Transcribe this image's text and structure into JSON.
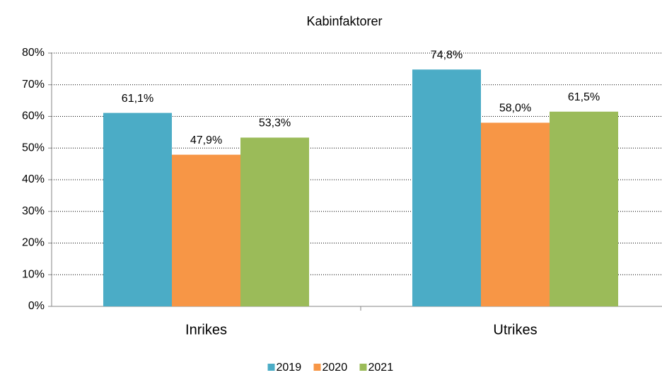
{
  "chart_data": {
    "type": "bar",
    "title": "Kabinfaktorer",
    "categories": [
      "Inrikes",
      "Utrikes"
    ],
    "series": [
      {
        "name": "2019",
        "color": "#4bacc6",
        "values": [
          61.1,
          74.8
        ],
        "value_labels": [
          "61,1%",
          "74,8%"
        ]
      },
      {
        "name": "2020",
        "color": "#f79646",
        "values": [
          47.9,
          58.0
        ],
        "value_labels": [
          "47,9%",
          "58,0%"
        ]
      },
      {
        "name": "2021",
        "color": "#9bbb59",
        "values": [
          53.3,
          61.5
        ],
        "value_labels": [
          "53,3%",
          "61,5%"
        ]
      }
    ],
    "ylim": [
      0,
      80
    ],
    "yticks": [
      {
        "value": 0,
        "label": "0%"
      },
      {
        "value": 10,
        "label": "10%"
      },
      {
        "value": 20,
        "label": "20%"
      },
      {
        "value": 30,
        "label": "30%"
      },
      {
        "value": 40,
        "label": "40%"
      },
      {
        "value": 50,
        "label": "50%"
      },
      {
        "value": 60,
        "label": "60%"
      },
      {
        "value": 70,
        "label": "70%"
      },
      {
        "value": 80,
        "label": "80%"
      }
    ],
    "grid": true,
    "legend": "bottom"
  }
}
